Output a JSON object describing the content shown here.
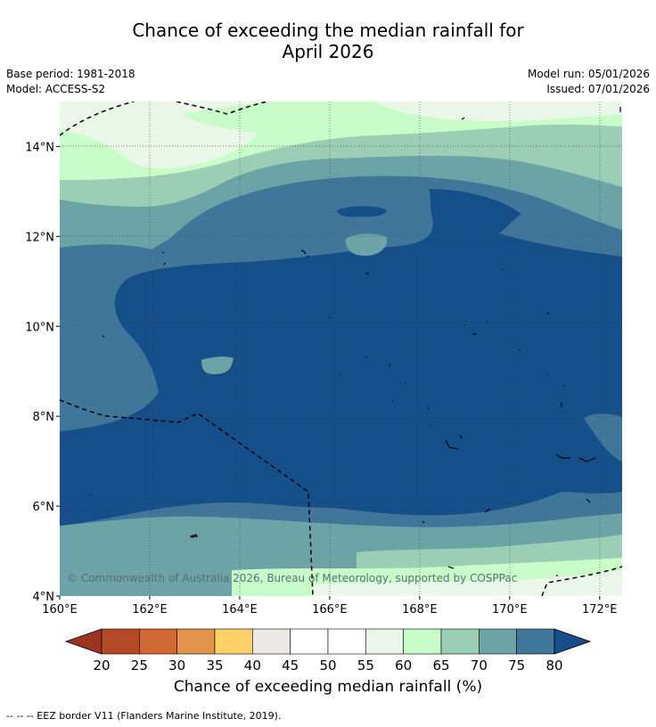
{
  "title_line1": "Chance of exceeding the median rainfall for",
  "title_line2": "April 2026",
  "meta_left": [
    "Base period: 1981-2018",
    "Model: ACCESS-S2"
  ],
  "meta_right": [
    "Model run: 05/01/2026",
    "Issued: 07/01/2026"
  ],
  "x_ticks": [
    {
      "lon": 160,
      "label": "160°E"
    },
    {
      "lon": 162,
      "label": "162°E"
    },
    {
      "lon": 164,
      "label": "164°E"
    },
    {
      "lon": 166,
      "label": "166°E"
    },
    {
      "lon": 168,
      "label": "168°E"
    },
    {
      "lon": 170,
      "label": "170°E"
    },
    {
      "lon": 172,
      "label": "172°E"
    }
  ],
  "y_ticks": [
    {
      "lat": 14,
      "label": "14°N"
    },
    {
      "lat": 12,
      "label": "12°N"
    },
    {
      "lat": 10,
      "label": "10°N"
    },
    {
      "lat": 8,
      "label": "8°N"
    },
    {
      "lat": 6,
      "label": "6°N"
    },
    {
      "lat": 4,
      "label": "4°N"
    }
  ],
  "map_extent": {
    "lon_min": 160,
    "lon_max": 172.5,
    "lat_min": 4,
    "lat_max": 15
  },
  "copyright": "© Commonwealth of Australia 2026, Bureau of Meteorology, supported by COSPPac",
  "colorbar": {
    "ticks": [
      "20",
      "25",
      "30",
      "35",
      "40",
      "45",
      "50",
      "55",
      "60",
      "65",
      "70",
      "75",
      "80"
    ],
    "low_extend_color": "#9b3520",
    "high_extend_color": "#154f8a",
    "bin_colors": [
      "#b34a25",
      "#cf6833",
      "#e2954a",
      "#fdd068",
      "#ede8e3",
      "#ffffff",
      "#ffffff",
      "#eaf6e7",
      "#c8fcc8",
      "#9acfb5",
      "#6ba3a6",
      "#3f7699"
    ],
    "label": "Chance of exceeding median rainfall (%)"
  },
  "legend_note": "-- -- -- EEZ border V11 (Flanders Marine Institute, 2019).",
  "palette": {
    "p55_60": "#eaf6e7",
    "p60_65": "#c8fcc8",
    "p65_70": "#9acfb5",
    "p70_75": "#6ba3a6",
    "p75_80": "#3f7699",
    "p80": "#154f8a"
  }
}
